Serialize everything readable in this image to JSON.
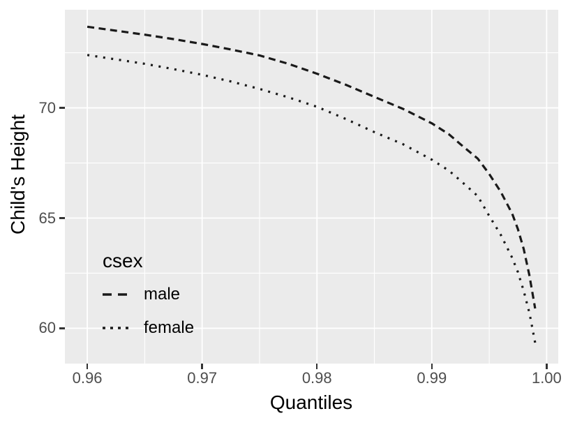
{
  "chart_data": {
    "type": "line",
    "title": "",
    "xlabel": "Quantiles",
    "ylabel": "Child's Height",
    "xlim": [
      0.95805,
      1.00101
    ],
    "ylim": [
      58.4,
      74.45
    ],
    "x_ticks": [
      0.96,
      0.97,
      0.98,
      0.99,
      1.0
    ],
    "x_tick_labels": [
      "0.96",
      "0.97",
      "0.98",
      "0.99",
      "1.00"
    ],
    "x_minor_ticks": [
      0.965,
      0.975,
      0.985,
      0.995
    ],
    "y_ticks": [
      60,
      65,
      70
    ],
    "y_tick_labels": [
      "60",
      "65",
      "70"
    ],
    "y_minor_ticks": [
      62.5,
      67.5,
      72.5
    ],
    "grid": "major-and-minor",
    "legend": {
      "title": "csex",
      "position": "inside-bottom-left"
    },
    "series": [
      {
        "name": "male",
        "linetype": "dashed",
        "color": "#1A1A1A",
        "points": [
          [
            0.96,
            73.68
          ],
          [
            0.9625,
            73.5
          ],
          [
            0.965,
            73.32
          ],
          [
            0.9675,
            73.12
          ],
          [
            0.97,
            72.9
          ],
          [
            0.9725,
            72.65
          ],
          [
            0.975,
            72.38
          ],
          [
            0.9775,
            72.0
          ],
          [
            0.98,
            71.55
          ],
          [
            0.9825,
            71.05
          ],
          [
            0.985,
            70.5
          ],
          [
            0.9875,
            69.95
          ],
          [
            0.99,
            69.3
          ],
          [
            0.9915,
            68.8
          ],
          [
            0.9925,
            68.35
          ],
          [
            0.994,
            67.7
          ],
          [
            0.995,
            67.0
          ],
          [
            0.996,
            66.2
          ],
          [
            0.997,
            65.2
          ],
          [
            0.9975,
            64.5
          ],
          [
            0.998,
            63.6
          ],
          [
            0.9985,
            62.4
          ],
          [
            0.999,
            60.9
          ]
        ]
      },
      {
        "name": "female",
        "linetype": "dotted",
        "color": "#1A1A1A",
        "points": [
          [
            0.96,
            72.4
          ],
          [
            0.9625,
            72.2
          ],
          [
            0.965,
            72.0
          ],
          [
            0.9675,
            71.76
          ],
          [
            0.97,
            71.5
          ],
          [
            0.9725,
            71.2
          ],
          [
            0.975,
            70.86
          ],
          [
            0.9775,
            70.48
          ],
          [
            0.98,
            70.05
          ],
          [
            0.9825,
            69.5
          ],
          [
            0.985,
            68.9
          ],
          [
            0.9875,
            68.35
          ],
          [
            0.99,
            67.65
          ],
          [
            0.9915,
            67.15
          ],
          [
            0.9925,
            66.7
          ],
          [
            0.994,
            66.0
          ],
          [
            0.995,
            65.1
          ],
          [
            0.996,
            64.25
          ],
          [
            0.997,
            63.2
          ],
          [
            0.9975,
            62.55
          ],
          [
            0.998,
            61.7
          ],
          [
            0.9985,
            60.7
          ],
          [
            0.999,
            59.35
          ]
        ]
      }
    ],
    "style": {
      "panel_background": "#EBEBEB",
      "grid_color": "#FFFFFF",
      "tick_label_color": "#4D4D4D",
      "axis_title_color": "#000000",
      "tick_mark_color": "#333333",
      "line_color": "#1A1A1A"
    }
  }
}
